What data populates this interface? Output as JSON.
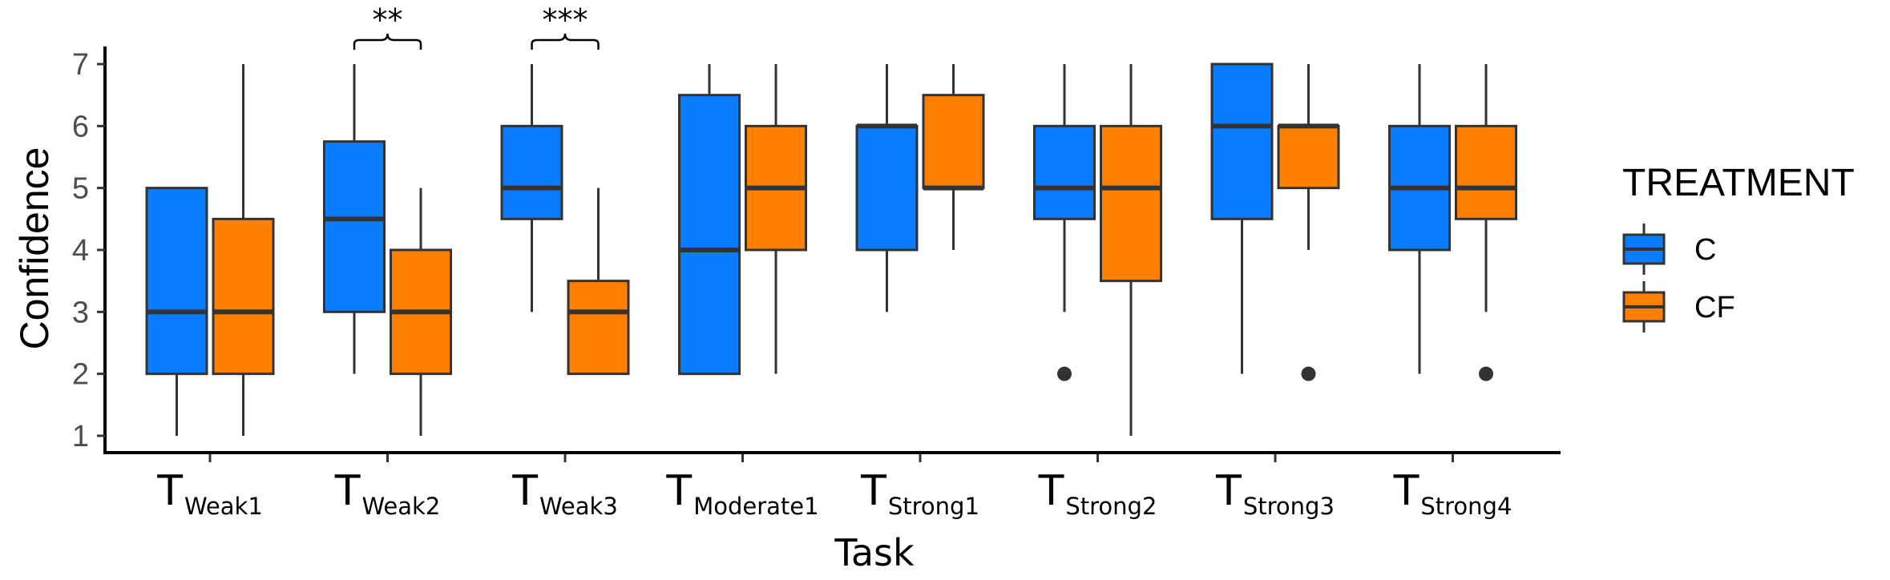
{
  "chart_data": {
    "type": "boxplot",
    "title": "",
    "xlabel": "Task",
    "ylabel": "Confidence",
    "ylim": [
      1,
      7
    ],
    "yticks": [
      "1",
      "2",
      "3",
      "4",
      "5",
      "6",
      "7"
    ],
    "grid": false,
    "categories": [
      {
        "main": "T",
        "sub": "Weak1"
      },
      {
        "main": "T",
        "sub": "Weak2"
      },
      {
        "main": "T",
        "sub": "Weak3"
      },
      {
        "main": "T",
        "sub": "Moderate1"
      },
      {
        "main": "T",
        "sub": "Strong1"
      },
      {
        "main": "T",
        "sub": "Strong2"
      },
      {
        "main": "T",
        "sub": "Strong3"
      },
      {
        "main": "T",
        "sub": "Strong4"
      }
    ],
    "legend": {
      "title": "TREATMENT",
      "position": "right",
      "entries": [
        {
          "name": "C",
          "color": "#0a7cff"
        },
        {
          "name": "CF",
          "color": "#ff8000"
        }
      ]
    },
    "series": [
      {
        "name": "C",
        "color": "#0a7cff",
        "boxes": [
          {
            "min": 1,
            "q1": 2,
            "median": 3,
            "q3": 5,
            "max": 5,
            "outliers": []
          },
          {
            "min": 2,
            "q1": 3,
            "median": 4.5,
            "q3": 5.75,
            "max": 7,
            "outliers": []
          },
          {
            "min": 3,
            "q1": 4.5,
            "median": 5,
            "q3": 6,
            "max": 7,
            "outliers": []
          },
          {
            "min": 2,
            "q1": 2,
            "median": 4,
            "q3": 6.5,
            "max": 7,
            "outliers": []
          },
          {
            "min": 3,
            "q1": 4,
            "median": 6,
            "q3": 6,
            "max": 7,
            "outliers": []
          },
          {
            "min": 3,
            "q1": 4.5,
            "median": 5,
            "q3": 6,
            "max": 7,
            "outliers": [
              2
            ]
          },
          {
            "min": 2,
            "q1": 4.5,
            "median": 6,
            "q3": 7,
            "max": 7,
            "outliers": []
          },
          {
            "min": 2,
            "q1": 4,
            "median": 5,
            "q3": 6,
            "max": 7,
            "outliers": []
          }
        ]
      },
      {
        "name": "CF",
        "color": "#ff8000",
        "boxes": [
          {
            "min": 1,
            "q1": 2,
            "median": 3,
            "q3": 4.5,
            "max": 7,
            "outliers": []
          },
          {
            "min": 1,
            "q1": 2,
            "median": 3,
            "q3": 4,
            "max": 5,
            "outliers": []
          },
          {
            "min": 2,
            "q1": 2,
            "median": 3,
            "q3": 3.5,
            "max": 5,
            "outliers": []
          },
          {
            "min": 2,
            "q1": 4,
            "median": 5,
            "q3": 6,
            "max": 7,
            "outliers": []
          },
          {
            "min": 4,
            "q1": 5,
            "median": 5,
            "q3": 6.5,
            "max": 7,
            "outliers": []
          },
          {
            "min": 1,
            "q1": 3.5,
            "median": 5,
            "q3": 6,
            "max": 7,
            "outliers": []
          },
          {
            "min": 4,
            "q1": 5,
            "median": 6,
            "q3": 6,
            "max": 7,
            "outliers": [
              2
            ]
          },
          {
            "min": 3,
            "q1": 4.5,
            "median": 5,
            "q3": 6,
            "max": 7,
            "outliers": [
              2
            ]
          }
        ]
      }
    ],
    "annotations": [
      {
        "category_index": 1,
        "text": "**"
      },
      {
        "category_index": 2,
        "text": "***"
      }
    ]
  }
}
